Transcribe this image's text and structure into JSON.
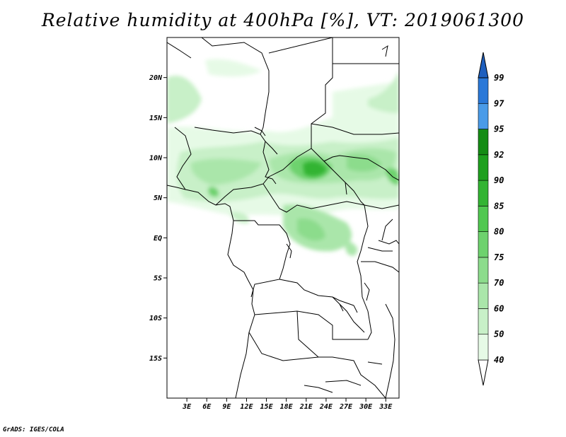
{
  "title": "Relative humidity at 400hPa [%], VT: 2019061300",
  "credit": "GrADS: IGES/COLA",
  "map": {
    "lon_range": [
      0,
      35
    ],
    "lat_range": [
      -20,
      25
    ],
    "lat_ticks": [
      {
        "lat": 20,
        "label": "20N"
      },
      {
        "lat": 15,
        "label": "15N"
      },
      {
        "lat": 10,
        "label": "10N"
      },
      {
        "lat": 5,
        "label": "5N"
      },
      {
        "lat": 0,
        "label": "EQ"
      },
      {
        "lat": -5,
        "label": "5S"
      },
      {
        "lat": -10,
        "label": "10S"
      },
      {
        "lat": -15,
        "label": "15S"
      }
    ],
    "lon_ticks": [
      {
        "lon": 3,
        "label": "3E"
      },
      {
        "lon": 6,
        "label": "6E"
      },
      {
        "lon": 9,
        "label": "9E"
      },
      {
        "lon": 12,
        "label": "12E"
      },
      {
        "lon": 15,
        "label": "15E"
      },
      {
        "lon": 18,
        "label": "18E"
      },
      {
        "lon": 21,
        "label": "21E"
      },
      {
        "lon": 24,
        "label": "24E"
      },
      {
        "lon": 27,
        "label": "27E"
      },
      {
        "lon": 30,
        "label": "30E"
      },
      {
        "lon": 33,
        "label": "33E"
      }
    ]
  },
  "colorbar": {
    "levels": [
      "40",
      "50",
      "60",
      "70",
      "75",
      "80",
      "85",
      "90",
      "92",
      "95",
      "97",
      "99"
    ],
    "colors": [
      "#ffffff",
      "#e6fae6",
      "#c8f0c8",
      "#aae6aa",
      "#8cdc8c",
      "#6ed26e",
      "#50c850",
      "#32b432",
      "#1ea01e",
      "#148c14",
      "#4a9be8",
      "#2a78d8",
      "#1e5fbe"
    ]
  }
}
